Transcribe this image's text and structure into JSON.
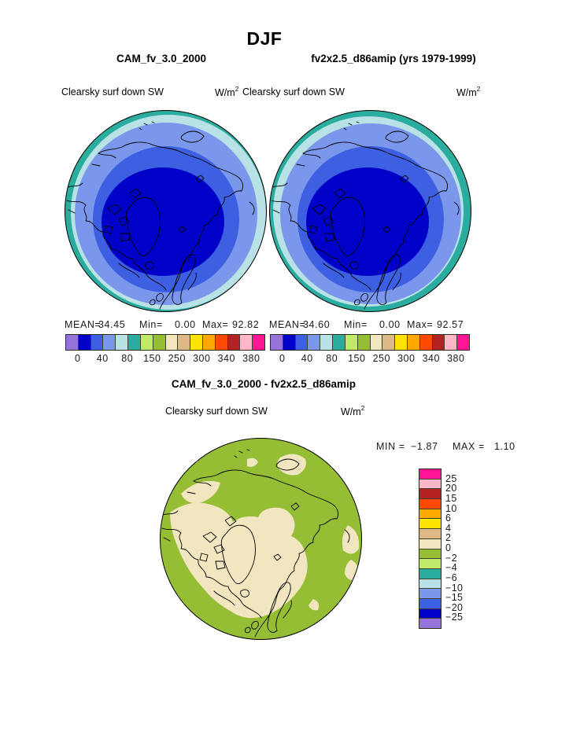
{
  "page": {
    "title": "DJF"
  },
  "panels": {
    "left": {
      "header": "CAM_fv_3.0_2000",
      "field": "Clearsky surf down SW",
      "units": "W/m",
      "units_sup": "2",
      "stats": {
        "mean_label": "MEAN=",
        "mean": "34.45",
        "min_label": "Min=",
        "min": "0.00",
        "max_label": "Max=",
        "max": "92.82"
      }
    },
    "right": {
      "header": "fv2x2.5_d86amip (yrs 1979-1999)",
      "field": "Clearsky surf down SW",
      "units": "W/m",
      "units_sup": "2",
      "stats": {
        "mean_label": "MEAN=",
        "mean": "34.60",
        "min_label": "Min=",
        "min": "0.00",
        "max_label": "Max=",
        "max": "92.57"
      }
    },
    "diff": {
      "header": "CAM_fv_3.0_2000 - fv2x2.5_d86amip",
      "field": "Clearsky surf down SW",
      "units": "W/m",
      "units_sup": "2",
      "stats": {
        "min_label": "MIN =",
        "min": "−1.87",
        "max_label": "MAX =",
        "max": "1.10"
      }
    }
  },
  "scale": {
    "colors": [
      "#9673DB",
      "#0000C8",
      "#3D5FE1",
      "#7B97EC",
      "#B8E2E6",
      "#2AAD9E",
      "#BFEA67",
      "#96BE35",
      "#F2E6C0",
      "#DDB987",
      "#FFE400",
      "#FFA800",
      "#FF4800",
      "#B22222",
      "#FFB6C8",
      "#FF1493"
    ],
    "ticks": [
      "0",
      "40",
      "80",
      "150",
      "250",
      "300",
      "340",
      "380"
    ]
  },
  "diff_scale": {
    "colors": [
      "#FF1493",
      "#FFB6C8",
      "#B22222",
      "#FF4800",
      "#FFA800",
      "#FFE400",
      "#DDB987",
      "#F2E6C0",
      "#96BE35",
      "#BFEA67",
      "#2AAD9E",
      "#B8E2E6",
      "#7B97EC",
      "#3D5FE1",
      "#0000C8",
      "#9673DB"
    ],
    "ticks": [
      "25",
      "20",
      "15",
      "10",
      "6",
      "4",
      "2",
      "0",
      "−2",
      "−4",
      "−6",
      "−10",
      "−15",
      "−20",
      "−25"
    ]
  },
  "chart_data": [
    {
      "type": "heatmap",
      "subtype": "north-polar-stereographic contour map",
      "season": "DJF",
      "title": "CAM_fv_3.0_2000",
      "variable": "Clearsky surf down SW",
      "units": "W/m2",
      "stats": {
        "mean": 34.45,
        "min": 0.0,
        "max": 92.82
      },
      "contour_level_labels": [
        0,
        40,
        80,
        150,
        250,
        300,
        340,
        380
      ],
      "palette_low_to_high": [
        "#9673DB",
        "#0000C8",
        "#3D5FE1",
        "#7B97EC",
        "#B8E2E6",
        "#2AAD9E",
        "#BFEA67",
        "#96BE35",
        "#F2E6C0",
        "#DDB987",
        "#FFE400",
        "#FFA800",
        "#FF4800",
        "#B22222",
        "#FFB6C8",
        "#FF1493"
      ],
      "description": "Lowest values (dark blue, near 0 W/m2) centered on the pole, increasing outward in concentric bands: dark blue, blue, light blue, pale cyan, teal at the outer rim"
    },
    {
      "type": "heatmap",
      "subtype": "north-polar-stereographic contour map",
      "season": "DJF",
      "title": "fv2x2.5_d86amip (yrs 1979-1999)",
      "variable": "Clearsky surf down SW",
      "units": "W/m2",
      "stats": {
        "mean": 34.6,
        "min": 0.0,
        "max": 92.57
      },
      "contour_level_labels": [
        0,
        40,
        80,
        150,
        250,
        300,
        340,
        380
      ],
      "description": "Nearly identical banded pattern to the first panel"
    },
    {
      "type": "heatmap",
      "subtype": "north-polar-stereographic difference map",
      "season": "DJF",
      "title": "CAM_fv_3.0_2000 - fv2x2.5_d86amip",
      "variable": "Clearsky surf down SW",
      "units": "W/m2",
      "stats": {
        "min": -1.87,
        "max": 1.1
      },
      "contour_levels": [
        -25,
        -20,
        -15,
        -10,
        -6,
        -4,
        -2,
        0,
        2,
        4,
        6,
        10,
        15,
        20,
        25
      ],
      "description": "Mostly green (0 to -2 W/m2) with irregular cream patches (0 to +2 W/m2) over the Canadian Arctic, Greenland, the pole and Scandinavia"
    }
  ]
}
